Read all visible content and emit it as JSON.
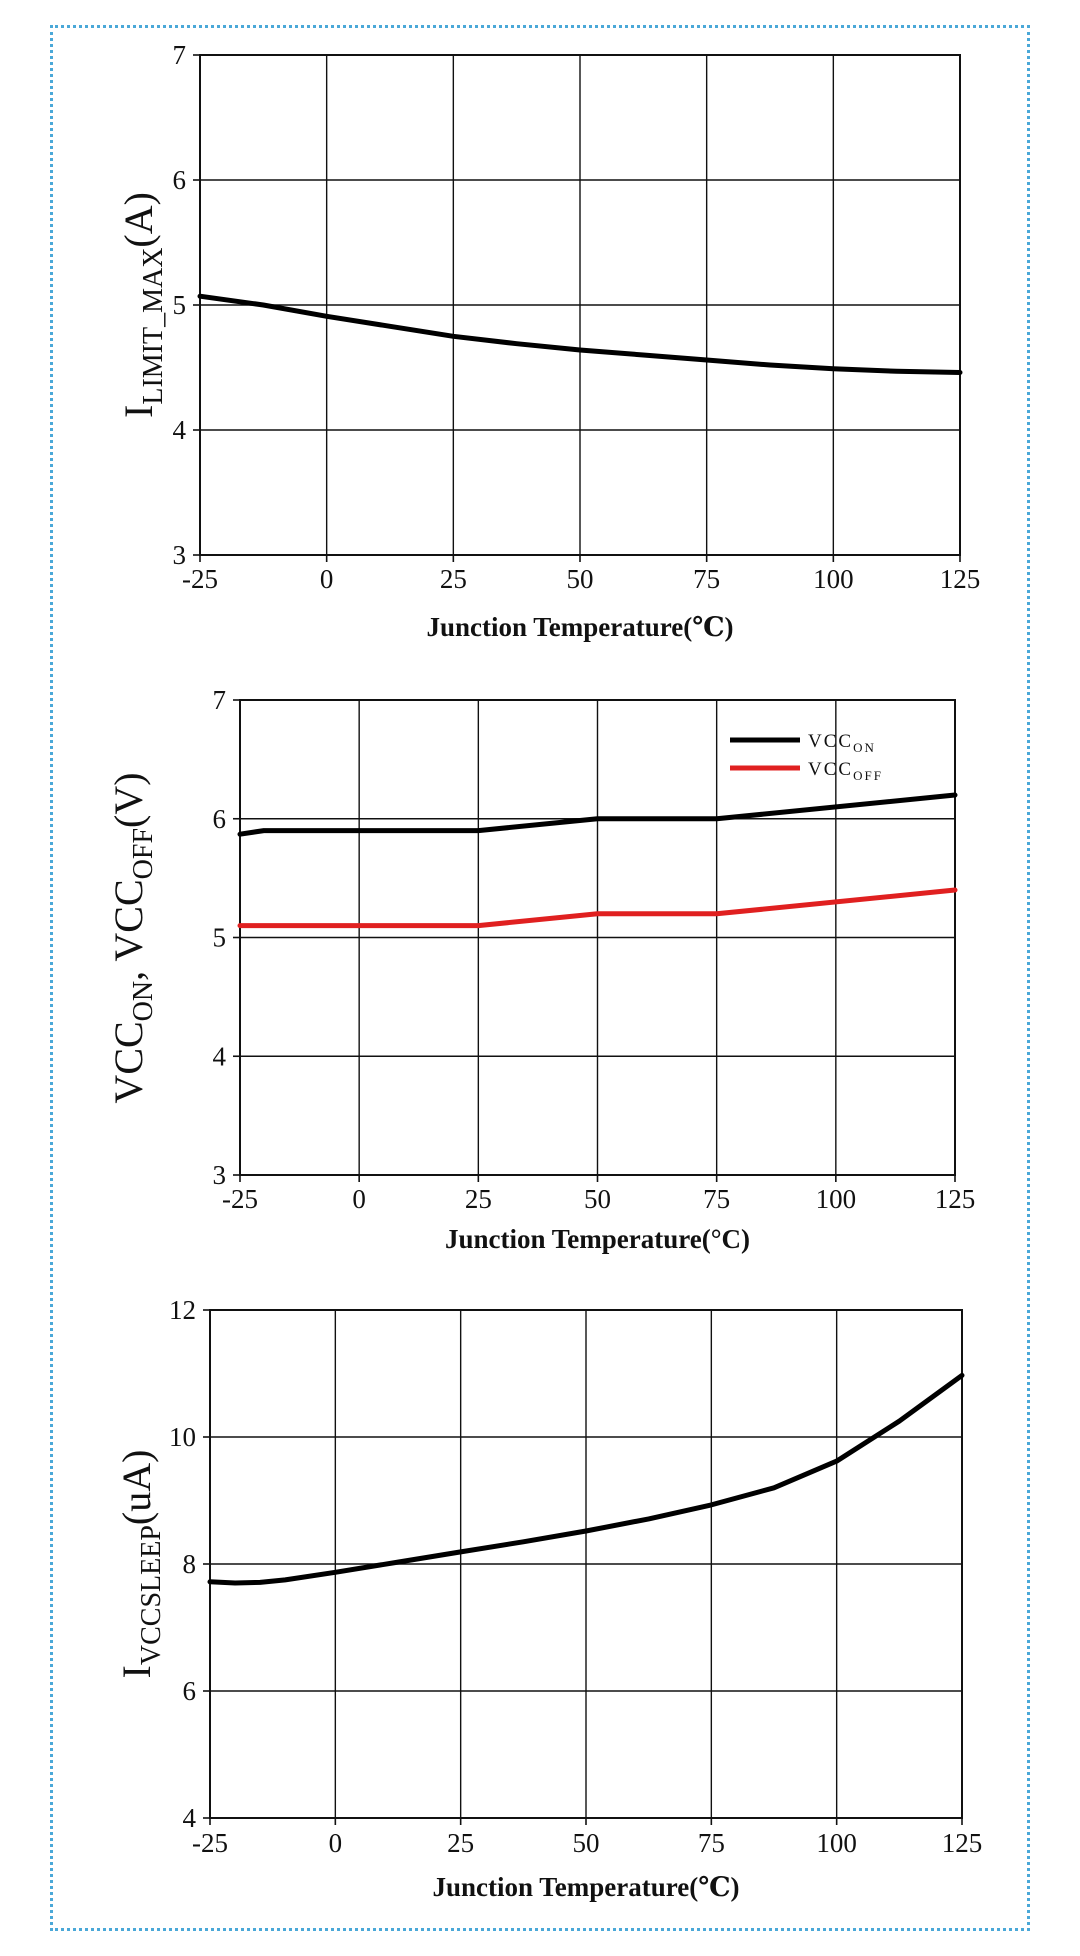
{
  "chart_data": [
    {
      "type": "line",
      "x_range": [
        -25,
        125
      ],
      "x_ticks": [
        "-25",
        "0",
        "25",
        "50",
        "75",
        "100",
        "125"
      ],
      "y_range": [
        3,
        7
      ],
      "y_ticks": [
        "3",
        "4",
        "5",
        "6",
        "7"
      ],
      "xlabel": "Junction Temperature(℃)",
      "ylabel": {
        "main": "I",
        "sub": "LIMIT_MAX",
        "tail": "(A)"
      },
      "grid": true,
      "series": [
        {
          "color": "#000000",
          "x": [
            -25,
            -12.5,
            0,
            12.5,
            25,
            37.5,
            50,
            62.5,
            75,
            87.5,
            100,
            112.5,
            125
          ],
          "y": [
            5.07,
            5.0,
            4.91,
            4.83,
            4.75,
            4.69,
            4.64,
            4.6,
            4.56,
            4.52,
            4.49,
            4.47,
            4.46
          ]
        }
      ]
    },
    {
      "type": "line",
      "x_range": [
        -25,
        125
      ],
      "x_ticks": [
        "-25",
        "0",
        "25",
        "50",
        "75",
        "100",
        "125"
      ],
      "y_range": [
        3,
        7
      ],
      "y_ticks": [
        "3",
        "4",
        "5",
        "6",
        "7"
      ],
      "xlabel": "Junction Temperature(°C)",
      "ylabel": {
        "parts": [
          {
            "t": "VCC",
            "sub": false
          },
          {
            "t": "ON",
            "sub": true
          },
          {
            "t": ", VCC",
            "sub": false
          },
          {
            "t": "OFF",
            "sub": true
          },
          {
            "t": "(V)",
            "sub": false
          }
        ]
      },
      "grid": true,
      "legend_position": "top-right",
      "series": [
        {
          "name": "VCC",
          "name_sub": "ON",
          "color": "#000000",
          "x": [
            -25,
            -20,
            25,
            50,
            75,
            125
          ],
          "y": [
            5.87,
            5.9,
            5.9,
            6.0,
            6.0,
            6.2
          ]
        },
        {
          "name": "VCC",
          "name_sub": "OFF",
          "color": "#e02020",
          "x": [
            -25,
            25,
            50,
            75,
            125
          ],
          "y": [
            5.1,
            5.1,
            5.2,
            5.2,
            5.4
          ]
        }
      ]
    },
    {
      "type": "line",
      "x_range": [
        -25,
        125
      ],
      "x_ticks": [
        "-25",
        "0",
        "25",
        "50",
        "75",
        "100",
        "125"
      ],
      "y_range": [
        4,
        12
      ],
      "y_ticks": [
        "4",
        "6",
        "8",
        "10",
        "12"
      ],
      "xlabel": "Junction Temperature(℃)",
      "ylabel": {
        "main": "I",
        "sub": "VCCSLEEP",
        "tail": "(uA)"
      },
      "grid": true,
      "series": [
        {
          "color": "#000000",
          "x": [
            -25,
            -20,
            -15,
            -10,
            0,
            12.5,
            25,
            37.5,
            50,
            62.5,
            75,
            87.5,
            100,
            112.5,
            125
          ],
          "y": [
            7.72,
            7.7,
            7.71,
            7.75,
            7.87,
            8.03,
            8.19,
            8.35,
            8.52,
            8.71,
            8.93,
            9.2,
            9.62,
            10.25,
            10.97
          ]
        }
      ]
    }
  ]
}
